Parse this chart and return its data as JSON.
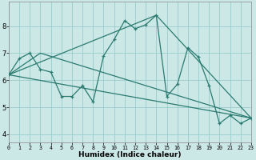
{
  "xlabel": "Humidex (Indice chaleur)",
  "bg_color": "#cce8e6",
  "grid_color": "#99cccc",
  "line_color": "#2a7a70",
  "xlim": [
    0,
    23
  ],
  "ylim": [
    3.7,
    8.9
  ],
  "xticks": [
    0,
    1,
    2,
    3,
    4,
    5,
    6,
    7,
    8,
    9,
    10,
    11,
    12,
    13,
    14,
    15,
    16,
    17,
    18,
    19,
    20,
    21,
    22,
    23
  ],
  "yticks": [
    4,
    5,
    6,
    7,
    8
  ],
  "line1_x": [
    0,
    1,
    2,
    3,
    4,
    5,
    6,
    7,
    8,
    9,
    10,
    11,
    12,
    13,
    14,
    15,
    16,
    17,
    18,
    19,
    20,
    21,
    22,
    23
  ],
  "line1_y": [
    6.2,
    6.8,
    7.0,
    6.4,
    6.3,
    5.4,
    5.4,
    5.8,
    5.2,
    6.9,
    7.5,
    8.2,
    7.9,
    8.05,
    8.4,
    5.4,
    5.85,
    7.2,
    6.85,
    5.8,
    4.4,
    4.7,
    4.4,
    4.6
  ],
  "line2_x": [
    0,
    23
  ],
  "line2_y": [
    6.2,
    4.6
  ],
  "line3_x": [
    0,
    3,
    23
  ],
  "line3_y": [
    6.2,
    7.0,
    4.6
  ],
  "line4_x": [
    0,
    14,
    23
  ],
  "line4_y": [
    6.2,
    8.4,
    4.6
  ]
}
